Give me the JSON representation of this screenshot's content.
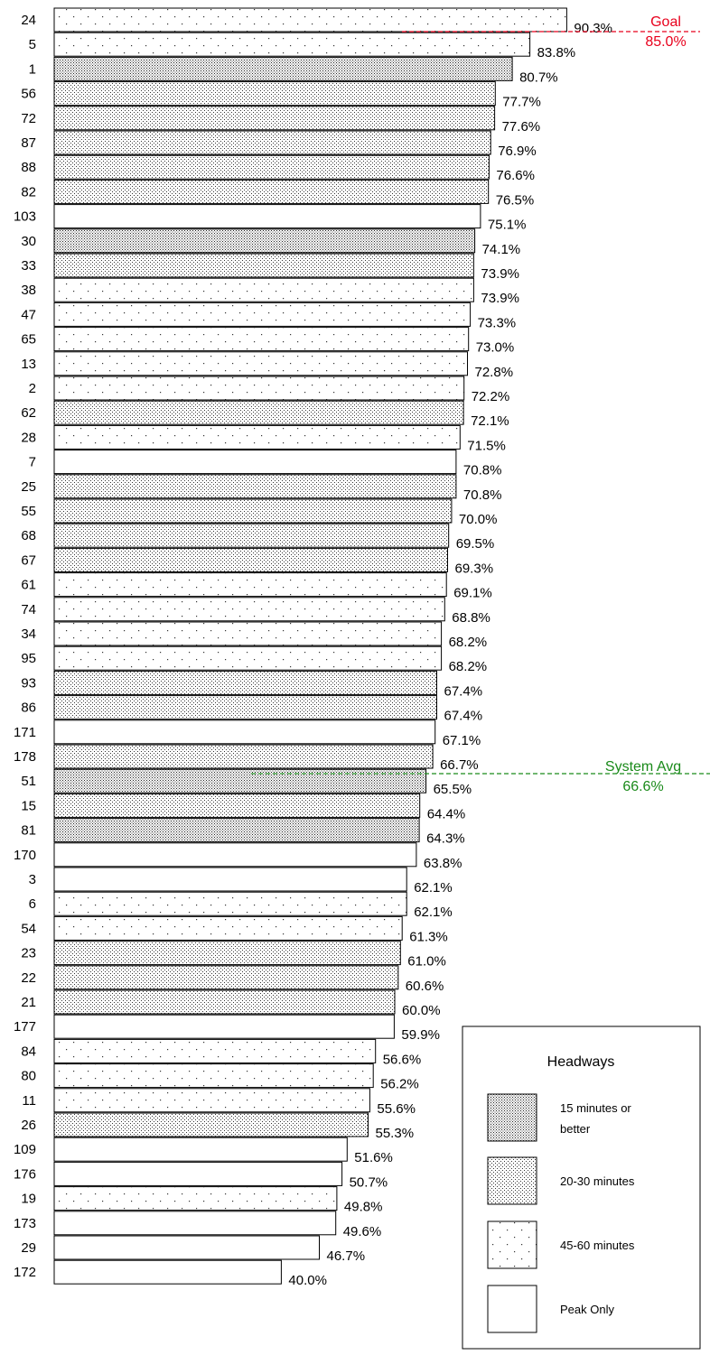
{
  "chart_data": {
    "type": "bar",
    "orientation": "horizontal",
    "categories": [
      "24",
      "5",
      "1",
      "56",
      "72",
      "87",
      "88",
      "82",
      "103",
      "30",
      "33",
      "38",
      "47",
      "65",
      "13",
      "2",
      "62",
      "28",
      "7",
      "25",
      "55",
      "68",
      "67",
      "61",
      "74",
      "34",
      "95",
      "93",
      "86",
      "171",
      "178",
      "51",
      "15",
      "81",
      "170",
      "3",
      "6",
      "54",
      "23",
      "22",
      "21",
      "177",
      "84",
      "80",
      "11",
      "26",
      "109",
      "176",
      "19",
      "173",
      "29",
      "172"
    ],
    "values": [
      90.3,
      83.8,
      80.7,
      77.7,
      77.6,
      76.9,
      76.6,
      76.5,
      75.1,
      74.1,
      73.9,
      73.9,
      73.3,
      73.0,
      72.8,
      72.2,
      72.1,
      71.5,
      70.8,
      70.8,
      70.0,
      69.5,
      69.3,
      69.1,
      68.8,
      68.2,
      68.2,
      67.4,
      67.4,
      67.1,
      66.7,
      65.5,
      64.4,
      64.3,
      63.8,
      62.1,
      62.1,
      61.3,
      61.0,
      60.6,
      60.0,
      59.9,
      56.6,
      56.2,
      55.6,
      55.3,
      51.6,
      50.7,
      49.8,
      49.6,
      46.7,
      40.0
    ],
    "value_labels": [
      "90.3%",
      "83.8%",
      "80.7%",
      "77.7%",
      "77.6%",
      "76.9%",
      "76.6%",
      "76.5%",
      "75.1%",
      "74.1%",
      "73.9%",
      "73.9%",
      "73.3%",
      "73.0%",
      "72.8%",
      "72.2%",
      "72.1%",
      "71.5%",
      "70.8%",
      "70.8%",
      "70.0%",
      "69.5%",
      "69.3%",
      "69.1%",
      "68.8%",
      "68.2%",
      "68.2%",
      "67.4%",
      "67.4%",
      "67.1%",
      "66.7%",
      "65.5%",
      "64.4%",
      "64.3%",
      "63.8%",
      "62.1%",
      "62.1%",
      "61.3%",
      "61.0%",
      "60.6%",
      "60.0%",
      "59.9%",
      "56.6%",
      "56.2%",
      "55.6%",
      "55.3%",
      "51.6%",
      "50.7%",
      "49.8%",
      "49.6%",
      "46.7%",
      "40.0%"
    ],
    "headway": [
      "45-60",
      "45-60",
      "15",
      "20-30",
      "20-30",
      "20-30",
      "20-30",
      "20-30",
      "peak",
      "15",
      "20-30",
      "45-60",
      "45-60",
      "45-60",
      "45-60",
      "45-60",
      "20-30",
      "45-60",
      "peak",
      "20-30",
      "20-30",
      "20-30",
      "20-30",
      "45-60",
      "45-60",
      "45-60",
      "45-60",
      "20-30",
      "20-30",
      "peak",
      "20-30",
      "15",
      "20-30",
      "15",
      "peak",
      "peak",
      "45-60",
      "45-60",
      "20-30",
      "20-30",
      "20-30",
      "peak",
      "45-60",
      "45-60",
      "45-60",
      "20-30",
      "peak",
      "peak",
      "45-60",
      "peak",
      "peak",
      "peak"
    ],
    "reference_lines": [
      {
        "key": "goal",
        "name": "Goal",
        "value_label": "85.0%",
        "value": 85.0,
        "color": "#e8001c"
      },
      {
        "key": "avg",
        "name": "System Avg",
        "value_label": "66.6%",
        "value": 66.6,
        "color": "#1a8a1a"
      }
    ],
    "legend": {
      "title": "Headways",
      "placement": "bottom-right",
      "items": [
        {
          "key": "15",
          "lines": [
            "15 minutes or",
            "better"
          ]
        },
        {
          "key": "20-30",
          "lines": [
            "20-30 minutes"
          ]
        },
        {
          "key": "45-60",
          "lines": [
            "45-60 minutes"
          ]
        },
        {
          "key": "peak",
          "lines": [
            "Peak Only"
          ]
        }
      ]
    },
    "grid": false
  }
}
